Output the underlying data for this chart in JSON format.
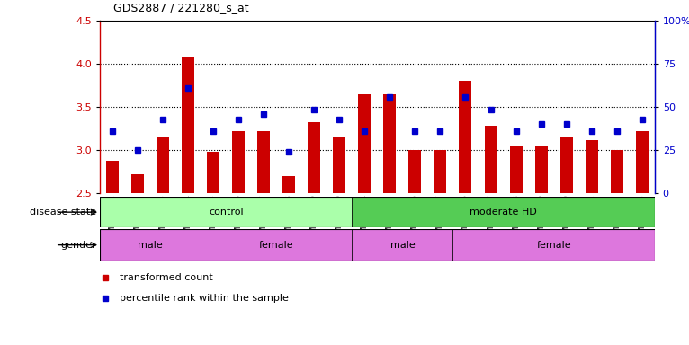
{
  "title": "GDS2887 / 221280_s_at",
  "samples": [
    "GSM217771",
    "GSM217772",
    "GSM217773",
    "GSM217774",
    "GSM217775",
    "GSM217766",
    "GSM217767",
    "GSM217768",
    "GSM217769",
    "GSM217770",
    "GSM217784",
    "GSM217785",
    "GSM217786",
    "GSM217787",
    "GSM217776",
    "GSM217777",
    "GSM217778",
    "GSM217779",
    "GSM217780",
    "GSM217781",
    "GSM217782",
    "GSM217783"
  ],
  "bar_values": [
    2.88,
    2.72,
    3.15,
    4.08,
    2.98,
    3.22,
    3.22,
    2.7,
    3.32,
    3.15,
    3.65,
    3.65,
    3.0,
    3.0,
    3.8,
    3.28,
    3.05,
    3.05,
    3.15,
    3.12,
    3.0,
    3.22
  ],
  "dot_values": [
    3.22,
    3.0,
    3.35,
    3.72,
    3.22,
    3.35,
    3.42,
    2.98,
    3.47,
    3.35,
    3.22,
    3.62,
    3.22,
    3.22,
    3.62,
    3.47,
    3.22,
    3.3,
    3.3,
    3.22,
    3.22,
    3.35
  ],
  "bar_color": "#cc0000",
  "dot_color": "#0000cc",
  "ylim_left": [
    2.5,
    4.5
  ],
  "ylim_right": [
    0,
    100
  ],
  "yticks_left": [
    2.5,
    3.0,
    3.5,
    4.0,
    4.5
  ],
  "yticks_right": [
    0,
    25,
    50,
    75,
    100
  ],
  "ytick_labels_right": [
    "0",
    "25",
    "50",
    "75",
    "100%"
  ],
  "bg_color": "#ffffff",
  "bar_bottom": 2.5,
  "disease_groups": [
    {
      "label": "control",
      "start": 0,
      "end": 10,
      "color": "#aaffaa"
    },
    {
      "label": "moderate HD",
      "start": 10,
      "end": 22,
      "color": "#55cc55"
    }
  ],
  "gen_groups": [
    {
      "label": "male",
      "start": 0,
      "end": 4
    },
    {
      "label": "female",
      "start": 4,
      "end": 10
    },
    {
      "label": "male",
      "start": 10,
      "end": 14
    },
    {
      "label": "female",
      "start": 14,
      "end": 22
    }
  ],
  "gender_color": "#dd77dd",
  "grid_lines": [
    3.0,
    3.5,
    4.0
  ]
}
